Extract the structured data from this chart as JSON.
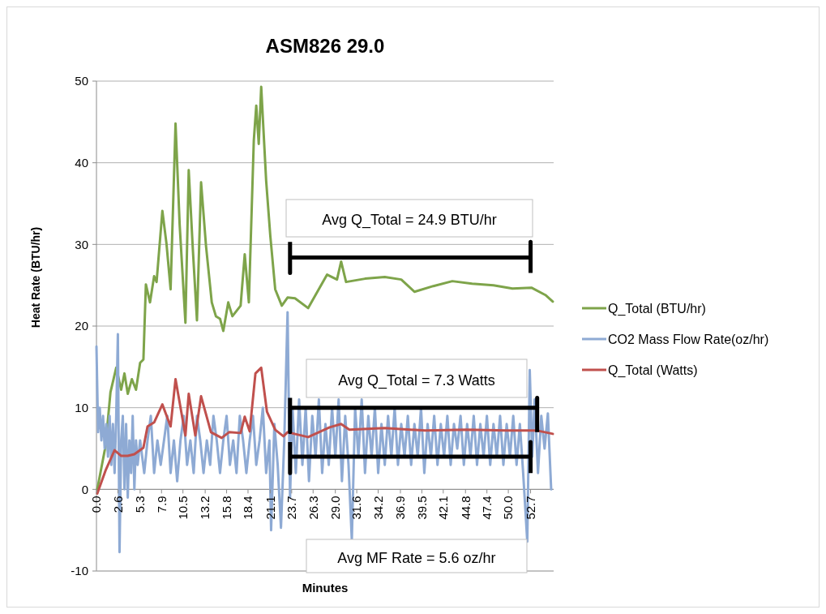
{
  "chart_data": {
    "type": "line",
    "title": "ASM826 29.0",
    "xlabel": "Minutes",
    "ylabel": "Heat Rate (BTU/hr)",
    "xlim": [
      0,
      55.5
    ],
    "xticks": [
      {
        "value": 0,
        "label": "0.0"
      },
      2.6,
      5.3,
      7.9,
      10.5,
      13.2,
      15.8,
      18.4,
      21.1,
      23.7,
      26.3,
      {
        "value": 29,
        "label": "29.0"
      },
      31.6,
      34.2,
      36.9,
      39.5,
      42.1,
      44.8,
      47.4,
      {
        "value": 50,
        "label": "50.0"
      },
      52.7
    ],
    "ylim": [
      -10,
      50
    ],
    "yticks": [
      -10,
      0,
      10,
      20,
      30,
      40,
      50
    ],
    "grid": "y",
    "legend": "right",
    "annotations": [
      "Avg Q_Total = 24.9 BTU/hr",
      "Avg Q_Total = 7.3 Watts",
      "Avg MF Rate = 5.6 oz/hr"
    ],
    "series": [
      {
        "name": "Q_Total (BTU/hr)",
        "color": "#7ea44a",
        "x": [
          0.1,
          1.1,
          1.7,
          2.4,
          3.0,
          3.4,
          3.8,
          4.3,
          4.8,
          5.3,
          5.7,
          6.0,
          6.5,
          7.0,
          7.3,
          8.0,
          8.5,
          9.0,
          9.6,
          10.1,
          10.8,
          11.2,
          11.7,
          12.2,
          12.7,
          13.3,
          14.0,
          14.5,
          15.0,
          15.4,
          16.0,
          16.5,
          17.5,
          18.0,
          18.5,
          19.1,
          19.4,
          19.7,
          20.0,
          20.6,
          21.1,
          21.7,
          22.5,
          23.2,
          24.1,
          25.7,
          28.0,
          29.2,
          29.7,
          30.3,
          32.6,
          35.0,
          37.0,
          38.6,
          40.9,
          43.2,
          45.6,
          48.2,
          50.5,
          52.8,
          54.5,
          55.4
        ],
        "values": [
          0,
          5.3,
          11.9,
          14.9,
          12.2,
          14.2,
          11.7,
          13.5,
          12.2,
          15.5,
          15.9,
          25.1,
          22.9,
          26.1,
          25.4,
          34.1,
          30.1,
          24.5,
          44.8,
          32.4,
          20.4,
          39.1,
          29.4,
          20.7,
          37.6,
          29.8,
          22.9,
          21.2,
          20.9,
          19.4,
          22.9,
          21.2,
          22.5,
          28.8,
          22.9,
          42.7,
          47.0,
          42.3,
          49.3,
          37.8,
          31.1,
          24.5,
          22.5,
          23.5,
          23.4,
          22.2,
          26.3,
          25.7,
          27.9,
          25.4,
          25.8,
          26.0,
          25.7,
          24.2,
          24.9,
          25.5,
          25.2,
          25.0,
          24.6,
          24.7,
          23.8,
          23.0
        ]
      },
      {
        "name": "CO2 Mass Flow Rate(oz/hr)",
        "color": "#8eaad4",
        "x": [
          0.0,
          0.2,
          0.4,
          0.6,
          0.8,
          1.0,
          1.2,
          1.4,
          1.6,
          1.8,
          2.0,
          2.2,
          2.4,
          2.6,
          2.8,
          3.0,
          3.2,
          3.4,
          3.6,
          3.8,
          4.0,
          4.2,
          4.4,
          4.6,
          4.8,
          5.0,
          5.3,
          5.8,
          6.2,
          6.6,
          7.0,
          7.4,
          7.8,
          8.2,
          8.6,
          9.0,
          9.4,
          9.8,
          10.2,
          10.6,
          11.0,
          11.4,
          11.8,
          12.2,
          12.6,
          13.0,
          13.4,
          13.8,
          14.2,
          14.6,
          15.0,
          15.4,
          15.8,
          16.2,
          16.6,
          17.0,
          17.4,
          17.8,
          18.2,
          18.6,
          19.0,
          19.4,
          19.8,
          20.2,
          20.6,
          21.0,
          21.2,
          21.6,
          22.0,
          22.4,
          22.8,
          23.2,
          23.5,
          23.8,
          24.2,
          24.6,
          25.0,
          25.4,
          25.8,
          26.2,
          26.6,
          27.0,
          27.4,
          27.8,
          28.2,
          28.6,
          29.0,
          29.4,
          29.8,
          30.2,
          30.6,
          31.0,
          31.4,
          31.8,
          32.2,
          32.6,
          33.0,
          33.4,
          33.8,
          34.2,
          34.6,
          35.0,
          35.4,
          35.8,
          36.2,
          36.6,
          37.0,
          37.4,
          37.8,
          38.2,
          38.6,
          39.0,
          39.4,
          39.8,
          40.2,
          40.6,
          41.0,
          41.4,
          41.8,
          42.2,
          42.6,
          43.0,
          43.4,
          43.8,
          44.2,
          44.6,
          45.0,
          45.4,
          45.8,
          46.2,
          46.6,
          47.0,
          47.4,
          47.8,
          48.2,
          48.6,
          49.0,
          49.4,
          49.8,
          50.2,
          50.6,
          51.0,
          51.4,
          51.8,
          52.3,
          52.6,
          52.9,
          53.2,
          53.6,
          54.0,
          54.4,
          54.8,
          55.2
        ],
        "values": [
          17.5,
          7,
          10,
          6,
          9,
          5,
          8,
          4,
          9,
          3,
          8,
          2,
          9,
          19,
          -7.7,
          6,
          9,
          0,
          8,
          -1,
          6,
          2,
          9,
          0,
          6,
          3,
          6,
          2,
          6,
          9,
          2,
          6,
          3,
          6,
          9,
          2,
          6,
          1,
          6,
          9,
          3,
          6,
          2,
          9,
          6,
          2,
          6,
          3,
          9,
          6,
          2,
          6,
          9,
          3,
          6,
          2,
          9,
          6,
          2,
          6,
          9,
          3,
          6,
          10,
          2,
          6,
          -5,
          8,
          3,
          -4.7,
          6,
          21.7,
          -1,
          10,
          2,
          11,
          3,
          10,
          1,
          9,
          4,
          11,
          2,
          8,
          3,
          10,
          4,
          11,
          1,
          9,
          3,
          -6.2,
          10,
          4,
          11,
          2,
          9,
          4,
          10,
          2,
          8,
          3,
          9,
          4,
          10,
          3,
          8,
          4,
          9,
          3,
          8,
          4,
          10,
          2,
          8,
          4,
          9,
          3,
          8,
          4,
          9,
          3,
          8,
          5,
          9,
          3,
          8,
          4,
          9,
          3,
          8,
          4,
          9,
          3,
          8,
          4,
          9,
          3,
          8,
          4,
          9,
          3,
          8,
          2,
          -6.4,
          14.6,
          4,
          11,
          2,
          9,
          5,
          9.3,
          0
        ]
      },
      {
        "name": "Q_Total (Watts)",
        "color": "#c0504d",
        "x": [
          0.1,
          1.1,
          2.2,
          3.0,
          3.8,
          4.6,
          5.7,
          6.2,
          7.0,
          8.0,
          9.0,
          9.6,
          10.8,
          11.2,
          12.0,
          12.7,
          13.9,
          15.2,
          16.1,
          17.5,
          18.0,
          18.6,
          19.3,
          20.0,
          20.7,
          21.7,
          22.7,
          23.2,
          25.7,
          28.3,
          29.7,
          30.7,
          35.0,
          39.9,
          44.9,
          49.8,
          53.5,
          55.4
        ],
        "values": [
          -0.5,
          2.3,
          4.8,
          4.1,
          4.1,
          4.3,
          5.1,
          7.7,
          8.2,
          10.4,
          7.7,
          13.5,
          6.6,
          11.7,
          6.6,
          11.4,
          7.0,
          6.3,
          7.0,
          6.9,
          8.9,
          7.1,
          14.2,
          14.9,
          9.5,
          7.3,
          6.5,
          7.0,
          6.4,
          7.6,
          8.0,
          7.3,
          7.5,
          7.2,
          7.3,
          7.2,
          7.2,
          6.8
        ]
      },
      {
        "type": "line",
        "color": "#000000",
        "x": [
          23.5,
          23.5,
          23.5,
          52.7,
          52.7,
          52.7
        ],
        "values": [
          30.3,
          26.5,
          28.4,
          28.4,
          30.3,
          26.5
        ]
      },
      {
        "type": "line",
        "color": "#000000",
        "x": [
          23.5,
          23.5,
          23.5,
          53.5,
          53.5,
          53.5
        ],
        "values": [
          11.2,
          7.0,
          10.0,
          10.0,
          11.2,
          7.0
        ]
      },
      {
        "type": "line",
        "color": "#000000",
        "x": [
          23.5,
          23.5,
          23.5,
          52.7,
          52.7,
          52.7
        ],
        "values": [
          5.8,
          2.0,
          4.0,
          4.0,
          5.8,
          2.0
        ]
      }
    ]
  }
}
